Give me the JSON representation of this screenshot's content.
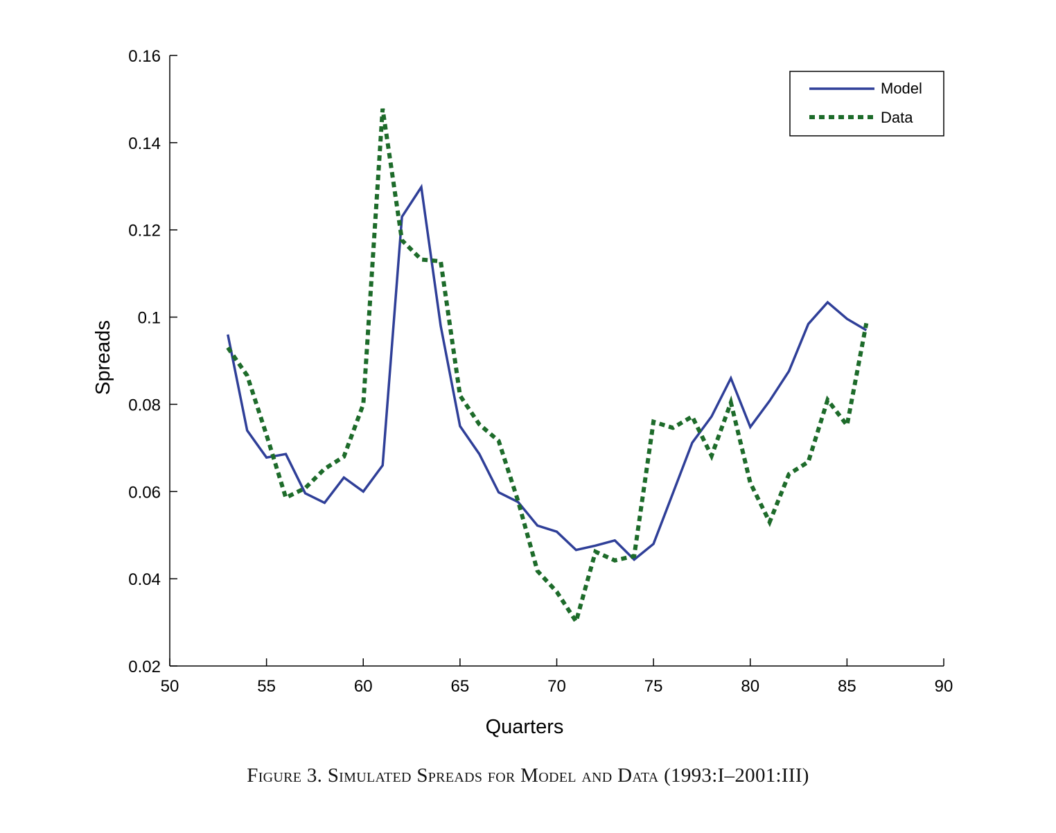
{
  "caption": "Figure 3. Simulated Spreads for Model and Data (1993:I–2001:III)",
  "chart_data": {
    "type": "line",
    "title": "",
    "xlabel": "Quarters",
    "ylabel": "Spreads",
    "xlim": [
      50,
      90
    ],
    "ylim": [
      0.02,
      0.16
    ],
    "xticks": [
      50,
      55,
      60,
      65,
      70,
      75,
      80,
      85,
      90
    ],
    "yticks": [
      0.02,
      0.04,
      0.06,
      0.08,
      0.1,
      0.12,
      0.14,
      0.16
    ],
    "xtick_labels": [
      "50",
      "55",
      "60",
      "65",
      "70",
      "75",
      "80",
      "85",
      "90"
    ],
    "ytick_labels": [
      "0.02",
      "0.04",
      "0.06",
      "0.08",
      "0.1",
      "0.12",
      "0.14",
      "0.16"
    ],
    "grid": false,
    "legend_position": "top-right",
    "x": [
      53,
      54,
      55,
      56,
      57,
      58,
      59,
      60,
      61,
      62,
      63,
      64,
      65,
      66,
      67,
      68,
      69,
      70,
      71,
      72,
      73,
      74,
      75,
      76,
      77,
      78,
      79,
      80,
      81,
      82,
      83,
      84,
      85,
      86
    ],
    "series": [
      {
        "name": "Model",
        "color": "#2f3f98",
        "style": "solid",
        "values": [
          0.096,
          0.074,
          0.0678,
          0.0686,
          0.0596,
          0.0574,
          0.0632,
          0.06,
          0.066,
          0.123,
          0.1298,
          0.098,
          0.075,
          0.0686,
          0.0598,
          0.0576,
          0.0522,
          0.0508,
          0.0466,
          0.0476,
          0.0488,
          0.0444,
          0.048,
          0.0596,
          0.0712,
          0.0772,
          0.086,
          0.0748,
          0.0808,
          0.0876,
          0.0984,
          0.1034,
          0.0996,
          0.097
        ]
      },
      {
        "name": "Data",
        "color": "#1d6b2a",
        "style": "dotted",
        "values": [
          0.093,
          0.0866,
          0.073,
          0.0586,
          0.0608,
          0.0652,
          0.068,
          0.08,
          0.1478,
          0.1176,
          0.1132,
          0.1128,
          0.082,
          0.0754,
          0.0716,
          0.0578,
          0.0418,
          0.037,
          0.0302,
          0.0462,
          0.0442,
          0.0452,
          0.076,
          0.0746,
          0.0772,
          0.0682,
          0.0804,
          0.062,
          0.053,
          0.064,
          0.0668,
          0.081,
          0.0752,
          0.0986
        ]
      }
    ]
  }
}
